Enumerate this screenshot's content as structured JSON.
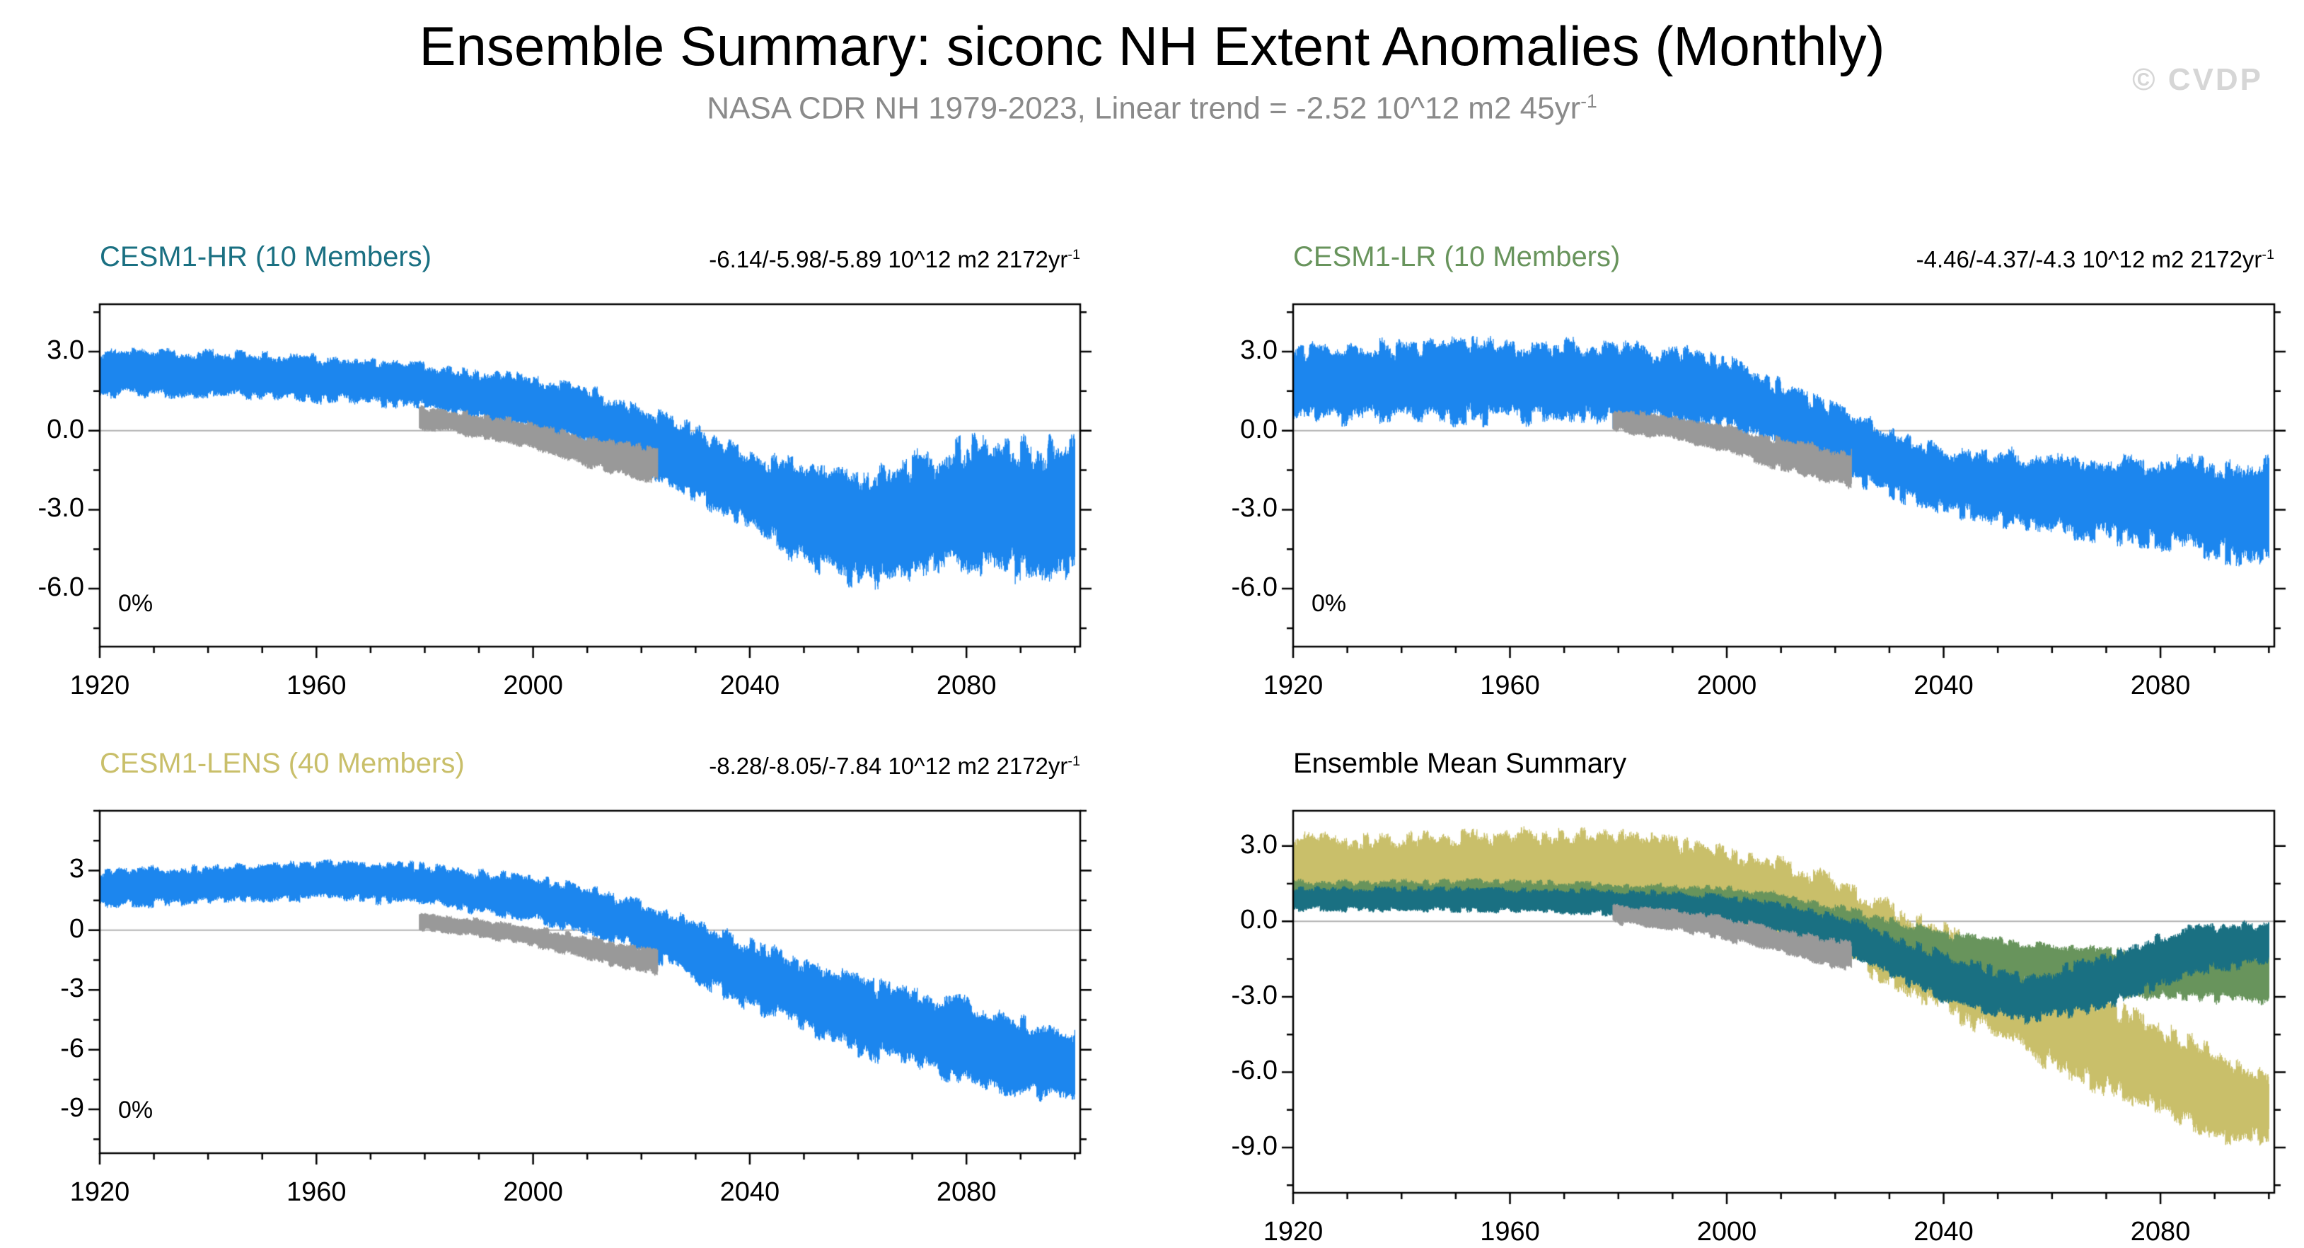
{
  "header": {
    "title": "Ensemble Summary: siconc NH Extent Anomalies (Monthly)",
    "subtitle": "NASA CDR NH 1979-2023, Linear trend = -2.52 10^12 m2 45yr",
    "subtitle_sup": "-1",
    "watermark": "© CVDP"
  },
  "colors": {
    "members_blue": "#1c86ee",
    "observations_gray": "#999999",
    "cesm1_hr_teal": "#1a7082",
    "cesm1_lr_green": "#68945c",
    "cesm1_lens_olive": "#c9bf6a",
    "zero_line": "#b3b3b3",
    "frame": "#000000"
  },
  "chart_data": [
    {
      "id": "cesm1-hr",
      "type": "area",
      "title": "CESM1-HR (10 Members)",
      "title_color": "#1a7082",
      "trend": "-6.14/-5.98/-5.89 10^12 m2 2172yr",
      "trend_sup": "-1",
      "annotation": "0%",
      "x_range": [
        1920,
        2101
      ],
      "y_range": [
        -8.2,
        4.8
      ],
      "x_ticks": [
        "1920",
        "1960",
        "2000",
        "2040",
        "2080"
      ],
      "x_tick_values": [
        1920,
        1960,
        2000,
        2040,
        2080
      ],
      "x_minor_step": 10,
      "y_ticks": [
        "3.0",
        "0.0",
        "-3.0",
        "-6.0"
      ],
      "y_tick_values": [
        3,
        0,
        -3,
        -6
      ],
      "y_minor_step": 1.5,
      "series": [
        {
          "name": "ensemble-members",
          "color": "#1c86ee",
          "years": [
            1920,
            1950,
            1980,
            2000,
            2010,
            2020,
            2030,
            2040,
            2050,
            2060,
            2070,
            2080,
            2090,
            2100
          ],
          "center": [
            2.2,
            2.1,
            1.7,
            1.0,
            0.5,
            -0.3,
            -1.2,
            -2.2,
            -3.2,
            -3.8,
            -3.3,
            -2.9,
            -3.0,
            -3.0
          ],
          "halfwidth": [
            1.0,
            1.0,
            1.0,
            1.2,
            1.3,
            1.5,
            1.6,
            1.8,
            2.1,
            2.4,
            2.6,
            2.9,
            3.0,
            3.0
          ]
        },
        {
          "name": "observations",
          "color": "#999999",
          "years": [
            1979,
            1990,
            2000,
            2010,
            2023
          ],
          "center": [
            0.5,
            0.2,
            -0.2,
            -0.8,
            -1.3
          ],
          "halfwidth": [
            0.5,
            0.55,
            0.6,
            0.7,
            0.8
          ]
        }
      ]
    },
    {
      "id": "cesm1-lr",
      "type": "area",
      "title": "CESM1-LR (10 Members)",
      "title_color": "#68945c",
      "trend": "-4.46/-4.37/-4.3 10^12 m2 2172yr",
      "trend_sup": "-1",
      "annotation": "0%",
      "x_range": [
        1920,
        2101
      ],
      "y_range": [
        -8.2,
        4.8
      ],
      "x_ticks": [
        "1920",
        "1960",
        "2000",
        "2040",
        "2080"
      ],
      "x_tick_values": [
        1920,
        1960,
        2000,
        2040,
        2080
      ],
      "x_minor_step": 10,
      "y_ticks": [
        "3.0",
        "0.0",
        "-3.0",
        "-6.0"
      ],
      "y_tick_values": [
        3,
        0,
        -3,
        -6
      ],
      "y_minor_step": 1.5,
      "series": [
        {
          "name": "ensemble-members",
          "color": "#1c86ee",
          "years": [
            1920,
            1960,
            1990,
            2000,
            2010,
            2020,
            2030,
            2040,
            2060,
            2080,
            2100
          ],
          "center": [
            1.8,
            1.9,
            1.7,
            1.4,
            0.6,
            -0.3,
            -1.2,
            -1.9,
            -2.4,
            -2.8,
            -3.1
          ],
          "halfwidth": [
            1.7,
            1.8,
            1.7,
            1.6,
            1.5,
            1.5,
            1.5,
            1.5,
            1.7,
            1.9,
            2.3
          ]
        },
        {
          "name": "observations",
          "color": "#999999",
          "years": [
            1979,
            1990,
            2000,
            2010,
            2023
          ],
          "center": [
            0.4,
            0.1,
            -0.3,
            -0.9,
            -1.5
          ],
          "halfwidth": [
            0.5,
            0.55,
            0.6,
            0.7,
            0.85
          ]
        }
      ]
    },
    {
      "id": "cesm1-lens",
      "type": "area",
      "title": "CESM1-LENS (40 Members)",
      "title_color": "#c9bf6a",
      "trend": "-8.28/-8.05/-7.84 10^12 m2 2172yr",
      "trend_sup": "-1",
      "annotation": "0%",
      "x_range": [
        1920,
        2101
      ],
      "y_range": [
        -11.2,
        6.0
      ],
      "x_ticks": [
        "1920",
        "1960",
        "2000",
        "2040",
        "2080"
      ],
      "x_tick_values": [
        1920,
        1960,
        2000,
        2040,
        2080
      ],
      "x_minor_step": 10,
      "y_ticks": [
        "3",
        "0",
        "-3",
        "-6",
        "-9"
      ],
      "y_tick_values": [
        3,
        0,
        -3,
        -6,
        -9
      ],
      "y_minor_step": 1.5,
      "series": [
        {
          "name": "ensemble-members",
          "color": "#1c86ee",
          "years": [
            1920,
            1940,
            1960,
            1980,
            2000,
            2010,
            2020,
            2030,
            2040,
            2050,
            2060,
            2070,
            2080,
            2090,
            2100
          ],
          "center": [
            2.1,
            2.3,
            2.5,
            2.3,
            1.6,
            1.0,
            0.2,
            -1.0,
            -2.2,
            -3.2,
            -4.2,
            -5.0,
            -5.6,
            -6.3,
            -6.8
          ],
          "halfwidth": [
            1.1,
            1.1,
            1.1,
            1.2,
            1.3,
            1.4,
            1.5,
            1.8,
            2.0,
            2.1,
            2.2,
            2.3,
            2.4,
            2.2,
            2.2
          ]
        },
        {
          "name": "observations",
          "color": "#999999",
          "years": [
            1979,
            1990,
            2000,
            2010,
            2023
          ],
          "center": [
            0.4,
            0.1,
            -0.3,
            -0.9,
            -1.6
          ],
          "halfwidth": [
            0.5,
            0.55,
            0.6,
            0.7,
            0.85
          ]
        }
      ]
    },
    {
      "id": "ensemble-mean-summary",
      "type": "area",
      "title": "Ensemble Mean Summary",
      "title_color": "#000000",
      "trend": "",
      "trend_sup": "",
      "annotation": null,
      "x_range": [
        1920,
        2101
      ],
      "y_range": [
        -10.8,
        4.4
      ],
      "x_ticks": [
        "1920",
        "1960",
        "2000",
        "2040",
        "2080"
      ],
      "x_tick_values": [
        1920,
        1960,
        2000,
        2040,
        2080
      ],
      "x_minor_step": 10,
      "y_ticks": [
        "3.0",
        "0.0",
        "-3.0",
        "-6.0",
        "-9.0"
      ],
      "y_tick_values": [
        3,
        0,
        -3,
        -6,
        -9
      ],
      "y_minor_step": 1.5,
      "series": [
        {
          "name": "CESM1-LENS",
          "color": "#c9bf6a",
          "years": [
            1920,
            1950,
            1975,
            2000,
            2010,
            2020,
            2030,
            2040,
            2050,
            2060,
            2070,
            2080,
            2090,
            2100
          ],
          "center": [
            2.0,
            2.1,
            2.2,
            1.5,
            1.0,
            0.2,
            -0.9,
            -1.9,
            -2.9,
            -3.9,
            -4.9,
            -5.9,
            -6.9,
            -7.5
          ],
          "halfwidth": [
            1.6,
            1.6,
            1.7,
            1.7,
            1.7,
            1.8,
            1.9,
            2.0,
            2.1,
            2.2,
            2.2,
            2.3,
            2.0,
            1.6
          ]
        },
        {
          "name": "CESM1-LR",
          "color": "#68945c",
          "years": [
            1920,
            1960,
            2000,
            2010,
            2020,
            2030,
            2040,
            2060,
            2080,
            2100
          ],
          "center": [
            1.1,
            1.15,
            0.9,
            0.5,
            0.0,
            -0.6,
            -1.2,
            -1.8,
            -2.2,
            -2.2
          ],
          "halfwidth": [
            0.6,
            0.6,
            0.6,
            0.7,
            0.8,
            0.85,
            0.9,
            1.0,
            1.1,
            1.2
          ]
        },
        {
          "name": "CESM1-HR",
          "color": "#1a7082",
          "years": [
            1920,
            1960,
            1990,
            2000,
            2010,
            2020,
            2030,
            2040,
            2055,
            2070,
            2085,
            2100
          ],
          "center": [
            0.9,
            0.85,
            0.7,
            0.45,
            0.1,
            -0.4,
            -1.3,
            -2.2,
            -3.1,
            -2.4,
            -1.2,
            -0.8
          ],
          "halfwidth": [
            0.55,
            0.55,
            0.6,
            0.65,
            0.75,
            0.9,
            1.0,
            1.1,
            1.1,
            1.2,
            1.2,
            0.9
          ]
        },
        {
          "name": "observations",
          "color": "#999999",
          "years": [
            1979,
            1990,
            2000,
            2010,
            2023
          ],
          "center": [
            0.3,
            0.1,
            -0.3,
            -0.8,
            -1.4
          ],
          "halfwidth": [
            0.45,
            0.5,
            0.55,
            0.6,
            0.7
          ]
        }
      ]
    }
  ]
}
